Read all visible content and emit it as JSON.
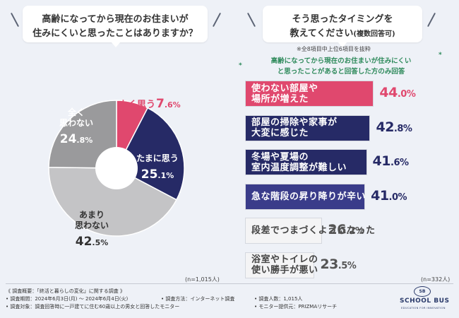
{
  "left_question": {
    "line1": "高齢になってから現在のお住まいが",
    "line2": "住みにくいと思ったことはありますか？"
  },
  "right_question": {
    "line1": "そう思ったタイミングを",
    "line2_main": "教えてください",
    "line2_small": "(複数回答可)"
  },
  "chart_data": [
    {
      "type": "pie",
      "title": "高齢になってから現在のお住まいが住みにくいと思ったことはありますか？",
      "n_label": "(n=1,015人)",
      "unit": "%",
      "slices": [
        {
          "label": "よく思う",
          "value": 7.6,
          "color": "#e0486e",
          "label_color": "#e0486e"
        },
        {
          "label": "たまに思う",
          "value": 25.1,
          "color": "#262a66",
          "label_color": "#ffffff"
        },
        {
          "label": "あまり思わない",
          "value": 42.5,
          "color": "#c4c4c6",
          "label_color": "#333333"
        },
        {
          "label": "全く思わない",
          "value": 24.8,
          "color": "#9a9a9c",
          "label_color": "#ffffff"
        }
      ]
    },
    {
      "type": "bar",
      "title": "そう思ったタイミングを教えてください(複数回答可)",
      "n_label": "(n=332人)",
      "unit": "%",
      "note": "※全8項目中上位6項目を抜粋",
      "subnote_line1": "高齢になってから現在のお住まいが住みにくい",
      "subnote_line2": "と思ったことがあると回答した方のみ回答",
      "star": "*",
      "xlim": [
        0,
        50
      ],
      "items": [
        {
          "line1": "使わない部屋や",
          "line2": "場所が増えた",
          "value": 44.0,
          "color": "#e0486e",
          "text_color": "#ffffff",
          "value_color": "#e0486e"
        },
        {
          "line1": "部屋の掃除や家事が",
          "line2": "大変に感じた",
          "value": 42.8,
          "color": "#262a66",
          "text_color": "#ffffff",
          "value_color": "#262a66"
        },
        {
          "line1": "冬場や夏場の",
          "line2": "室内温度調整が難しい",
          "value": 41.6,
          "color": "#262a66",
          "text_color": "#ffffff",
          "value_color": "#262a66"
        },
        {
          "line1": "急な階段の昇り降りが辛い",
          "line2": "",
          "value": 41.0,
          "color": "#3a3c8a",
          "text_color": "#ffffff",
          "value_color": "#262a66"
        },
        {
          "line1": "段差でつまづくようになった",
          "line2": "",
          "value": 26.2,
          "color": "#f4f4f5",
          "text_color": "#444444",
          "value_color": "#555555"
        },
        {
          "line1": "浴室やトイレの",
          "line2": "使い勝手が悪い",
          "value": 23.5,
          "color": "#f4f4f5",
          "text_color": "#444444",
          "value_color": "#555555"
        }
      ]
    }
  ],
  "footer": {
    "survey_title": "《 調査概要：「終活と暮らしの変化」に関する調査 》",
    "period": "• 調査期間：2024年6月3日(月) 〜 2024年6月4日(火)",
    "method": "• 調査方法：インターネット調査",
    "count": "• 調査人数：1,015人",
    "target": "• 調査対象：調査回答時に一戸建てに住む60歳以上の男女と回答したモニター",
    "provider": "• モニター提供元：PRIZMAリサーチ"
  },
  "logo": {
    "mark": "SB",
    "name": "SCHOOL BUS",
    "sub": "EDUCATION FOR INNOVATION"
  }
}
